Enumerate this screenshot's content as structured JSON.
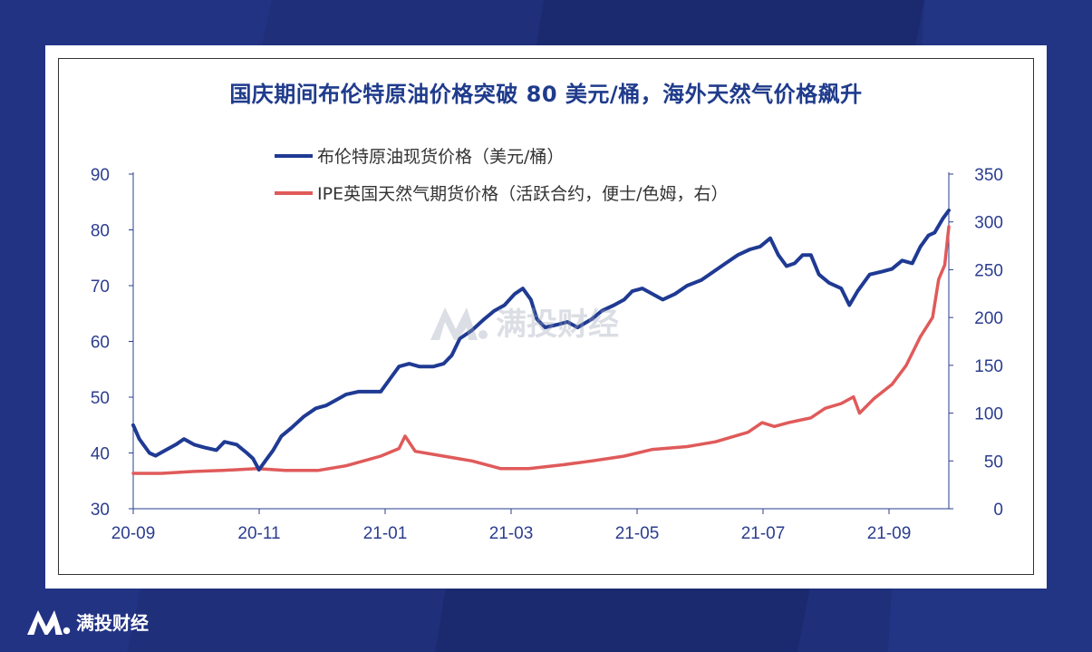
{
  "chart_data": {
    "type": "line",
    "title": "国庆期间布伦特原油价格突破 80 美元/桶，海外天然气价格飙升",
    "x_ticks": [
      "20-09",
      "20-11",
      "21-01",
      "21-03",
      "21-05",
      "21-07",
      "21-09"
    ],
    "y_left": {
      "ylim": [
        30,
        90
      ],
      "ticks": [
        "90",
        "80",
        "70",
        "60",
        "50",
        "40",
        "30"
      ]
    },
    "y_right": {
      "ylim": [
        0,
        350
      ],
      "ticks": [
        "350",
        "300",
        "250",
        "200",
        "150",
        "100",
        "50",
        "0"
      ]
    },
    "grid": false,
    "legend_position": "top-left",
    "series": [
      {
        "name": "布伦特原油现货价格（美元/桶）",
        "axis": "left",
        "color": "#1f3a93",
        "points": [
          [
            "2020-09-01",
            45
          ],
          [
            "2020-09-04",
            42.5
          ],
          [
            "2020-09-09",
            40
          ],
          [
            "2020-09-12",
            39.5
          ],
          [
            "2020-09-17",
            40.5
          ],
          [
            "2020-09-22",
            41.5
          ],
          [
            "2020-09-26",
            42.5
          ],
          [
            "2020-10-01",
            41.5
          ],
          [
            "2020-10-06",
            41
          ],
          [
            "2020-10-12",
            40.5
          ],
          [
            "2020-10-16",
            42
          ],
          [
            "2020-10-22",
            41.5
          ],
          [
            "2020-10-27",
            40
          ],
          [
            "2020-10-30",
            39
          ],
          [
            "2020-11-02",
            37
          ],
          [
            "2020-11-05",
            38.5
          ],
          [
            "2020-11-09",
            40.5
          ],
          [
            "2020-11-13",
            43
          ],
          [
            "2020-11-18",
            44.5
          ],
          [
            "2020-11-24",
            46.5
          ],
          [
            "2020-11-30",
            48
          ],
          [
            "2020-12-05",
            48.5
          ],
          [
            "2020-12-10",
            49.5
          ],
          [
            "2020-12-15",
            50.5
          ],
          [
            "2020-12-21",
            51
          ],
          [
            "2020-12-27",
            51
          ],
          [
            "2021-01-01",
            51
          ],
          [
            "2021-01-06",
            53.5
          ],
          [
            "2021-01-10",
            55.5
          ],
          [
            "2021-01-15",
            56
          ],
          [
            "2021-01-20",
            55.5
          ],
          [
            "2021-01-27",
            55.5
          ],
          [
            "2021-02-01",
            56
          ],
          [
            "2021-02-05",
            57.5
          ],
          [
            "2021-02-09",
            60.5
          ],
          [
            "2021-02-15",
            62
          ],
          [
            "2021-02-21",
            64
          ],
          [
            "2021-02-26",
            65.5
          ],
          [
            "2021-03-03",
            66.5
          ],
          [
            "2021-03-08",
            68.5
          ],
          [
            "2021-03-12",
            69.5
          ],
          [
            "2021-03-16",
            67.5
          ],
          [
            "2021-03-19",
            64
          ],
          [
            "2021-03-23",
            62.5
          ],
          [
            "2021-03-29",
            63
          ],
          [
            "2021-04-03",
            63.5
          ],
          [
            "2021-04-08",
            62.5
          ],
          [
            "2021-04-15",
            64
          ],
          [
            "2021-04-20",
            65.5
          ],
          [
            "2021-04-26",
            66.5
          ],
          [
            "2021-05-01",
            67.5
          ],
          [
            "2021-05-05",
            69
          ],
          [
            "2021-05-10",
            69.5
          ],
          [
            "2021-05-15",
            68.5
          ],
          [
            "2021-05-20",
            67.5
          ],
          [
            "2021-05-26",
            68.5
          ],
          [
            "2021-06-01",
            70
          ],
          [
            "2021-06-08",
            71
          ],
          [
            "2021-06-14",
            72.5
          ],
          [
            "2021-06-20",
            74
          ],
          [
            "2021-06-26",
            75.5
          ],
          [
            "2021-07-02",
            76.5
          ],
          [
            "2021-07-07",
            77
          ],
          [
            "2021-07-12",
            78.5
          ],
          [
            "2021-07-16",
            75.5
          ],
          [
            "2021-07-20",
            73.5
          ],
          [
            "2021-07-24",
            74
          ],
          [
            "2021-07-28",
            75.5
          ],
          [
            "2021-08-01",
            75.5
          ],
          [
            "2021-08-05",
            72
          ],
          [
            "2021-08-10",
            70.5
          ],
          [
            "2021-08-16",
            69.5
          ],
          [
            "2021-08-20",
            66.5
          ],
          [
            "2021-08-24",
            69
          ],
          [
            "2021-08-30",
            72
          ],
          [
            "2021-09-05",
            72.5
          ],
          [
            "2021-09-10",
            73
          ],
          [
            "2021-09-15",
            74.5
          ],
          [
            "2021-09-20",
            74
          ],
          [
            "2021-09-24",
            77
          ],
          [
            "2021-09-28",
            79
          ],
          [
            "2021-10-01",
            79.5
          ],
          [
            "2021-10-05",
            82
          ],
          [
            "2021-10-08",
            83.5
          ]
        ]
      },
      {
        "name": "IPE英国天然气期货价格（活跃合约，便士/色姆，右）",
        "axis": "right",
        "color": "#e05a5a",
        "points": [
          [
            "2020-09-01",
            37
          ],
          [
            "2020-09-15",
            37
          ],
          [
            "2020-10-01",
            39
          ],
          [
            "2020-10-15",
            40
          ],
          [
            "2020-11-01",
            42
          ],
          [
            "2020-11-15",
            40
          ],
          [
            "2020-12-01",
            40
          ],
          [
            "2020-12-15",
            45
          ],
          [
            "2021-01-01",
            55
          ],
          [
            "2021-01-10",
            63
          ],
          [
            "2021-01-13",
            76
          ],
          [
            "2021-01-18",
            60
          ],
          [
            "2021-02-01",
            55
          ],
          [
            "2021-02-15",
            50
          ],
          [
            "2021-03-01",
            42
          ],
          [
            "2021-03-15",
            42
          ],
          [
            "2021-04-01",
            46
          ],
          [
            "2021-04-15",
            50
          ],
          [
            "2021-05-01",
            55
          ],
          [
            "2021-05-15",
            62
          ],
          [
            "2021-06-01",
            65
          ],
          [
            "2021-06-15",
            70
          ],
          [
            "2021-07-01",
            80
          ],
          [
            "2021-07-08",
            90
          ],
          [
            "2021-07-14",
            86
          ],
          [
            "2021-07-21",
            90
          ],
          [
            "2021-08-01",
            95
          ],
          [
            "2021-08-08",
            105
          ],
          [
            "2021-08-16",
            110
          ],
          [
            "2021-08-22",
            117
          ],
          [
            "2021-08-25",
            100
          ],
          [
            "2021-09-01",
            115
          ],
          [
            "2021-09-10",
            130
          ],
          [
            "2021-09-17",
            150
          ],
          [
            "2021-09-24",
            180
          ],
          [
            "2021-09-30",
            200
          ],
          [
            "2021-10-03",
            240
          ],
          [
            "2021-10-06",
            255
          ],
          [
            "2021-10-08",
            295
          ]
        ]
      }
    ]
  },
  "watermark_text": "满投财经",
  "footer_brand": "满投财经"
}
